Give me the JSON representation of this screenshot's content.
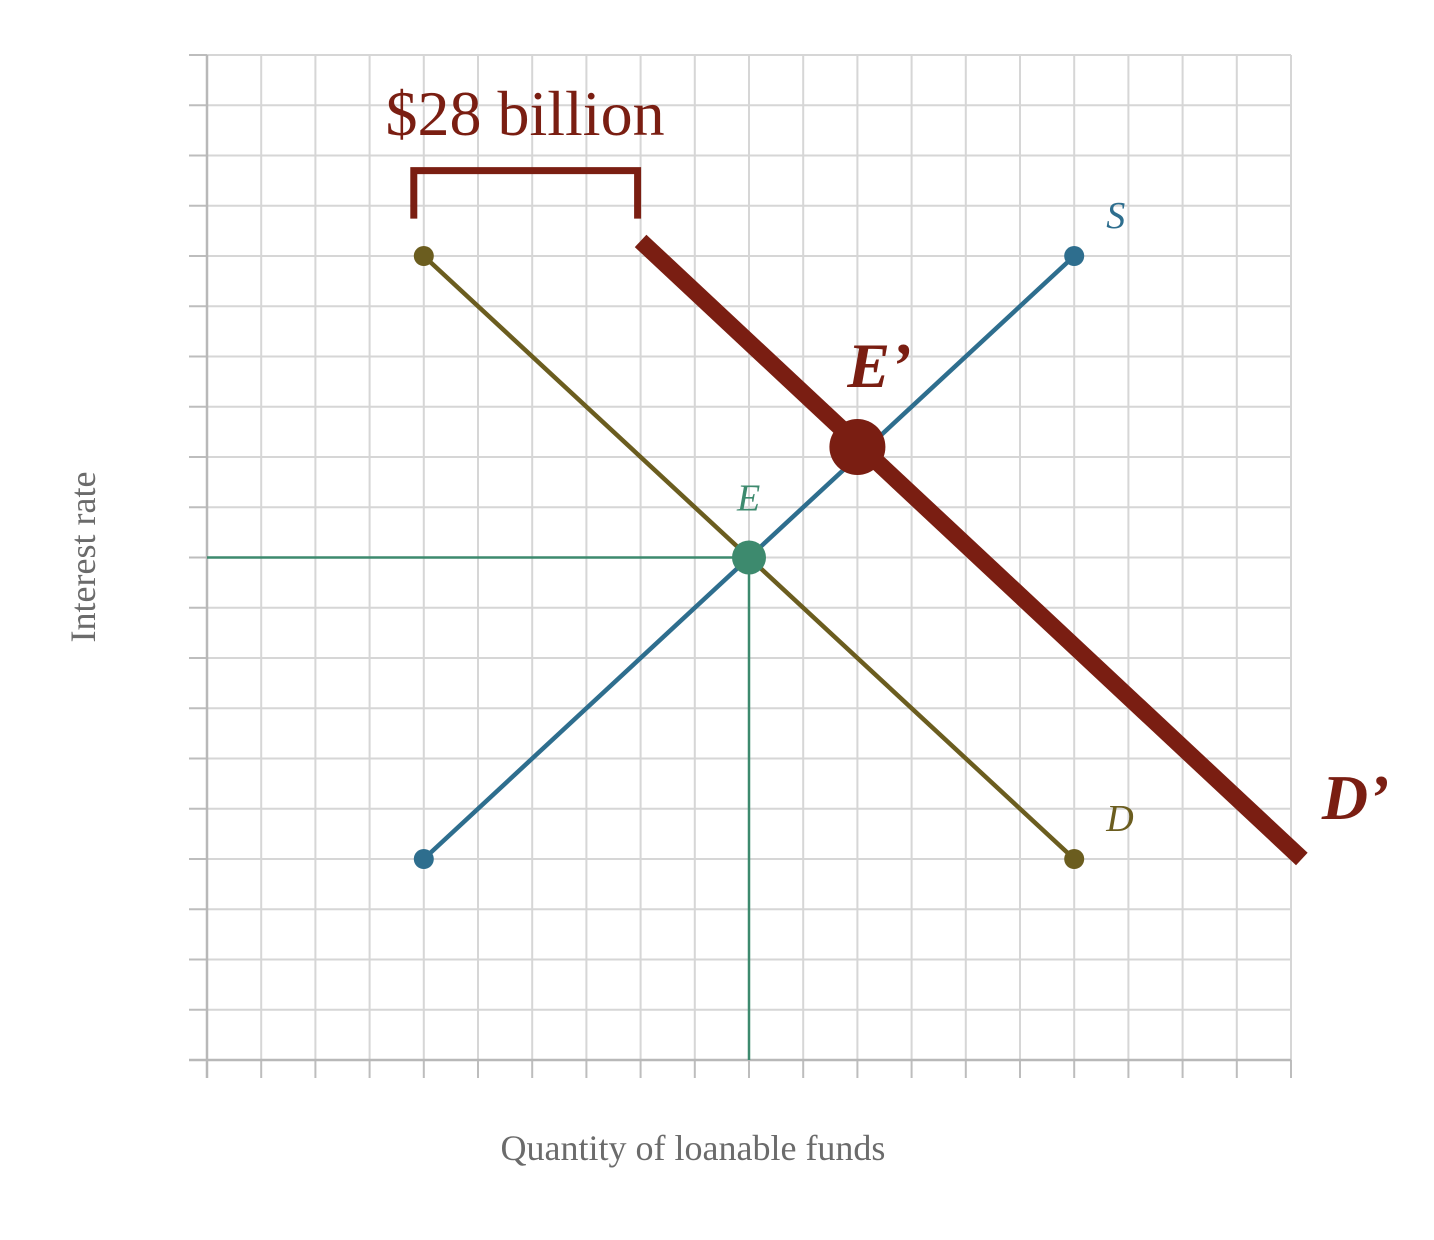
{
  "chart_data": {
    "type": "line",
    "xlabel": "Quantity of loanable funds",
    "ylabel": "Interest rate",
    "xlim": [
      0,
      20
    ],
    "ylim": [
      0,
      20
    ],
    "grid": true,
    "colors": {
      "supply": "#2e6e8e",
      "demand": "#6b5d1f",
      "new_demand": "#7a1e12",
      "equilibrium": "#3d8a6e",
      "annotation": "#7a1e12"
    },
    "series": [
      {
        "name": "S",
        "points": [
          [
            4,
            4
          ],
          [
            16,
            16
          ]
        ]
      },
      {
        "name": "D",
        "points": [
          [
            4,
            16
          ],
          [
            16,
            4
          ]
        ]
      },
      {
        "name": "D’",
        "points": [
          [
            8,
            16.3
          ],
          [
            20.2,
            4
          ]
        ]
      }
    ],
    "points": [
      {
        "label": "E",
        "x": 10,
        "y": 10
      },
      {
        "label": "E’",
        "x": 12,
        "y": 12.2
      }
    ],
    "guides": {
      "x": 10,
      "y": 10
    },
    "bracket": {
      "from_x": 4,
      "to_x": 8,
      "y": 17.7,
      "label": "$28 billion"
    }
  }
}
